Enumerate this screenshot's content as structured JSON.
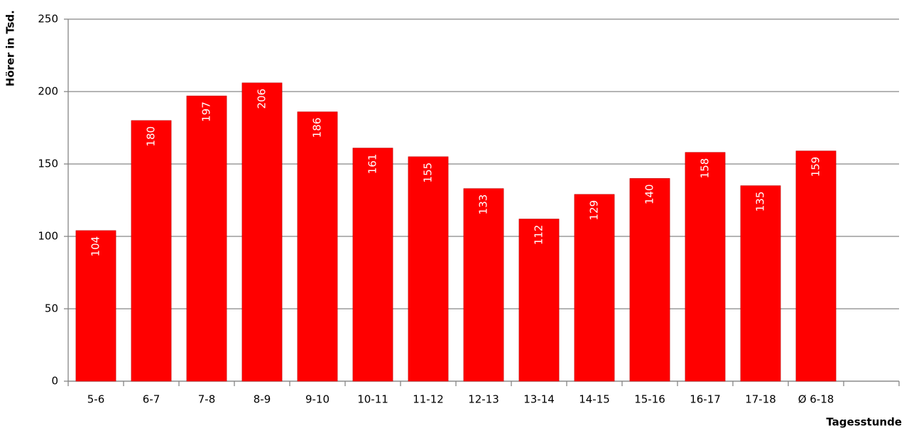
{
  "chart_data": {
    "type": "bar",
    "y_label": "Hörer in Tsd.",
    "x_label": "Tagesstunde",
    "categories": [
      "5-6",
      "6-7",
      "7-8",
      "8-9",
      "9-10",
      "10-11",
      "11-12",
      "12-13",
      "13-14",
      "14-15",
      "15-16",
      "16-17",
      "17-18",
      "Ø 6-18",
      null
    ],
    "values": [
      104,
      180,
      197,
      206,
      186,
      161,
      155,
      133,
      112,
      129,
      140,
      158,
      135,
      159,
      null
    ],
    "color": "#ff0000",
    "ylim": [
      0,
      250
    ],
    "yticks": [
      0,
      50,
      100,
      150,
      200,
      250
    ],
    "grid": true
  }
}
